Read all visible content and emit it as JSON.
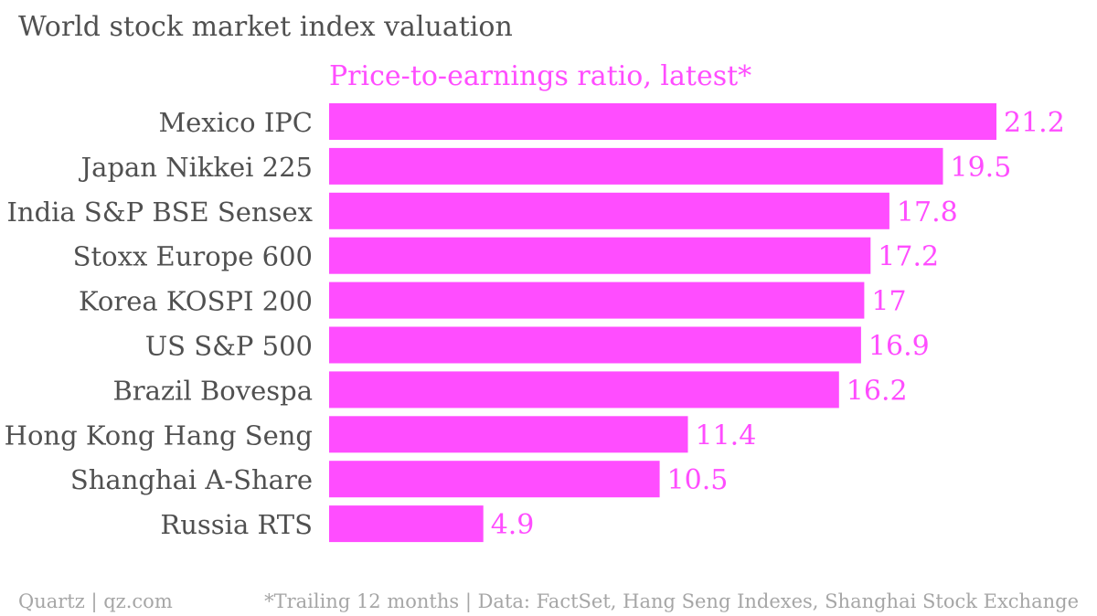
{
  "title": "World stock market index valuation",
  "footer": {
    "left": "Quartz | qz.com",
    "right": "*Trailing 12 months | Data: FactSet, Hang Seng Indexes, Shanghai Stock Exchange"
  },
  "colors": {
    "bar": "#ff4dff",
    "series_label": "#ff4dff",
    "value_label": "#ff4dff",
    "category_label": "#505050",
    "title": "#505050",
    "footer": "#a6a6a6"
  },
  "chart_data": {
    "type": "bar",
    "orientation": "horizontal",
    "title": "World stock market index valuation",
    "series": [
      {
        "name": "Price-to-earnings ratio, latest*",
        "values": [
          21.2,
          19.5,
          17.8,
          17.2,
          17,
          16.9,
          16.2,
          11.4,
          10.5,
          4.9
        ]
      }
    ],
    "categories": [
      "Mexico IPC",
      "Japan Nikkei 225",
      "India S&P BSE Sensex",
      "Stoxx Europe 600",
      "Korea KOSPI 200",
      "US S&P 500",
      "Brazil Bovespa",
      "Hong Kong Hang Seng",
      "Shanghai A-Share",
      "Russia RTS"
    ],
    "value_labels": [
      "21.2",
      "19.5",
      "17.8",
      "17.2",
      "17",
      "16.9",
      "16.2",
      "11.4",
      "10.5",
      "4.9"
    ],
    "xlim": [
      0,
      21.2
    ],
    "grid": false,
    "legend": "none"
  }
}
